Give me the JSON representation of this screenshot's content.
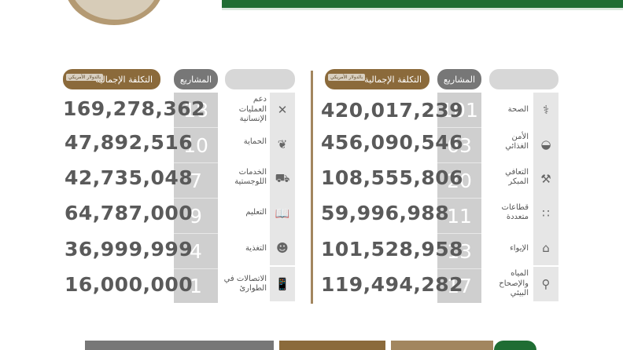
{
  "colors": {
    "green": "#1f6d33",
    "brown": "#8b6a3b",
    "gray_head": "#777777",
    "gray_cells": "#cfcfcf"
  },
  "headers": {
    "projects": "المشاريع",
    "total_cost": "التكلفة الإجمالية",
    "usd_tag": "بالدولار الأمريكي"
  },
  "right_table": {
    "rows": [
      {
        "sector": "الصحة",
        "projects": "101",
        "cost": "420,017,239",
        "icon": "caduceus-icon"
      },
      {
        "sector": "الأمن الغذائي",
        "projects": "63",
        "cost": "456,090,546",
        "icon": "food-bowl-icon"
      },
      {
        "sector": "التعافي المبكر",
        "projects": "20",
        "cost": "108,555,806",
        "icon": "hammer-icon"
      },
      {
        "sector": "قطاعات متعددة",
        "projects": "11",
        "cost": "59,996,988",
        "icon": "dots-icon"
      },
      {
        "sector": "الإيواء",
        "projects": "13",
        "cost": "101,528,958",
        "icon": "shelter-icon"
      },
      {
        "sector": "المياه والإصحاح البيئي",
        "projects": "17",
        "cost": "119,494,282",
        "icon": "water-tap-icon"
      }
    ]
  },
  "left_table": {
    "rows": [
      {
        "sector": "دعم العمليات الإنسانية",
        "projects": "18",
        "cost": "169,278,362",
        "icon": "tools-icon"
      },
      {
        "sector": "الحماية",
        "projects": "10",
        "cost": "47,892,516",
        "icon": "protection-hands-icon"
      },
      {
        "sector": "الخدمات اللوجستية",
        "projects": "7",
        "cost": "42,735,048",
        "icon": "car-icon"
      },
      {
        "sector": "التعليم",
        "projects": "9",
        "cost": "64,787,000",
        "icon": "book-icon"
      },
      {
        "sector": "التغذية",
        "projects": "4",
        "cost": "36,999,999",
        "icon": "nutrition-icon"
      },
      {
        "sector": "الاتصالات في الطوارئ",
        "projects": "1",
        "cost": "16,000,000",
        "icon": "antenna-phone-icon"
      }
    ]
  }
}
